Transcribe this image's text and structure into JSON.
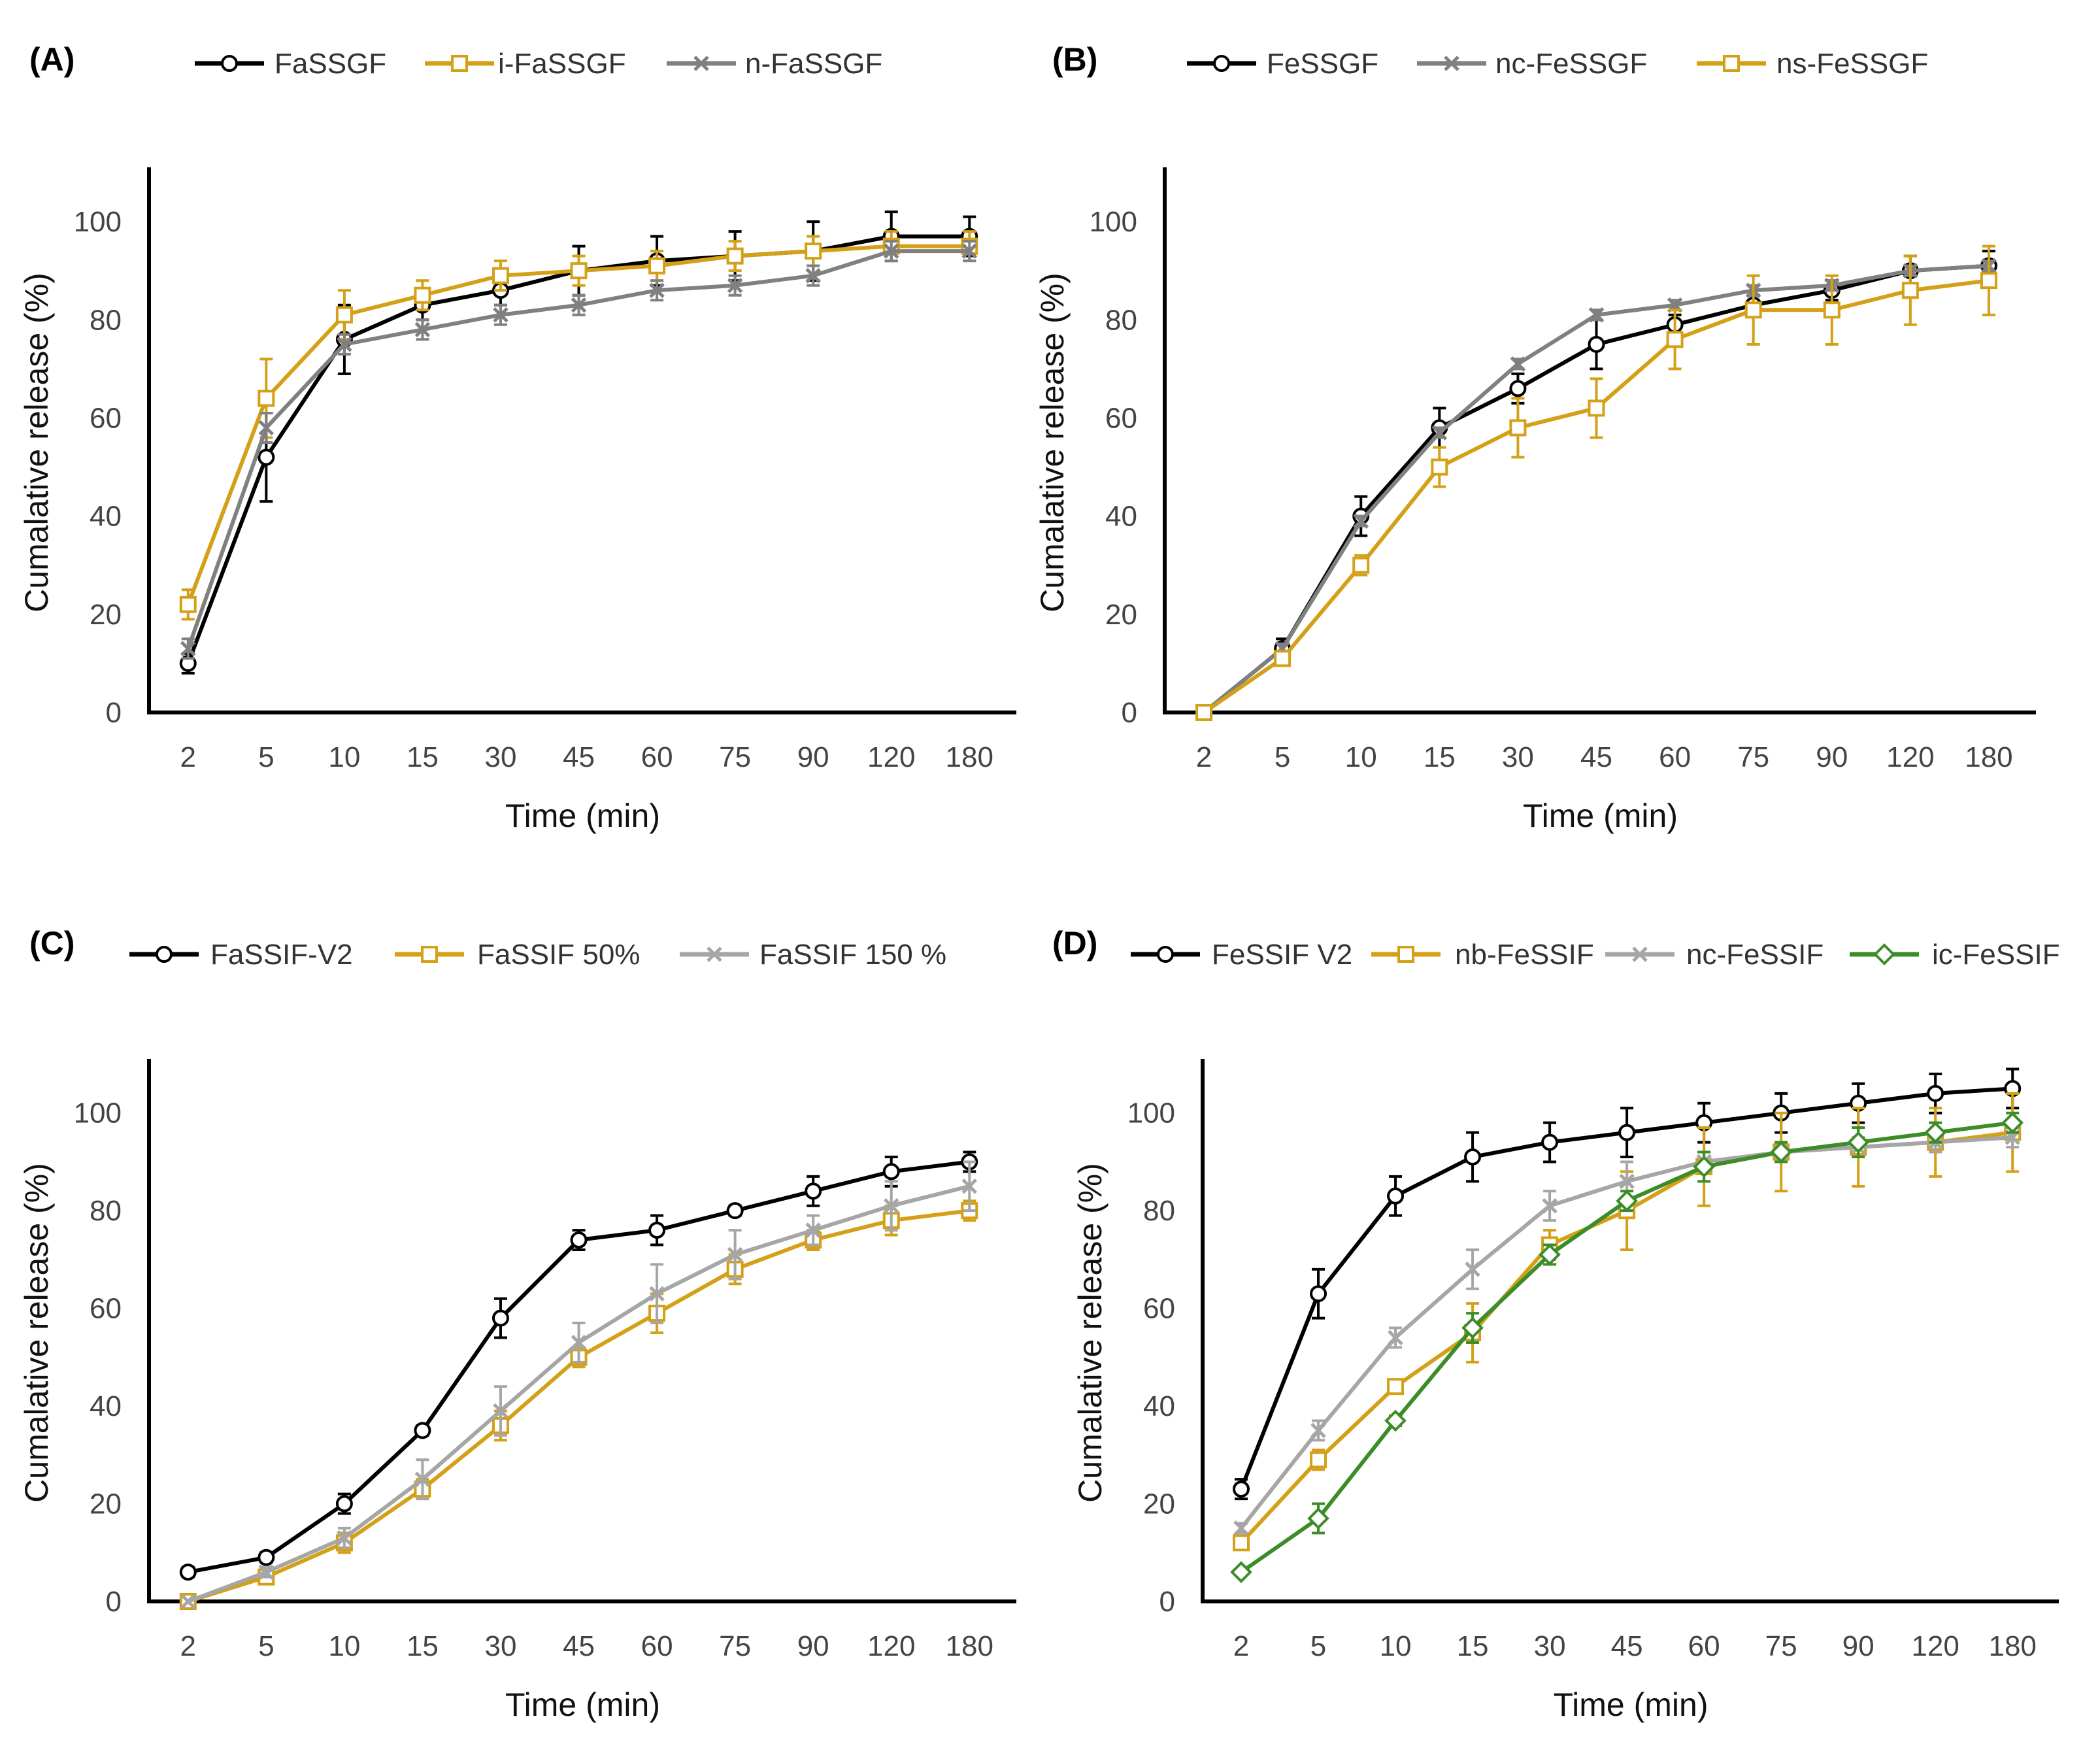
{
  "chart_data": [
    {
      "type": "line",
      "panel": "(A)",
      "title": "",
      "xlabel": "Time (min)",
      "ylabel": "Cumalative release (%)",
      "categories": [
        "2",
        "5",
        "10",
        "15",
        "30",
        "45",
        "60",
        "75",
        "90",
        "120",
        "180"
      ],
      "ylim": [
        0,
        110
      ],
      "yticks": [
        0,
        20,
        40,
        60,
        80,
        100
      ],
      "legend_position": "top",
      "series": [
        {
          "name": "FaSSGF",
          "color": "#000000",
          "marker": "circle",
          "values": [
            10,
            52,
            76,
            83,
            86,
            90,
            92,
            93,
            94,
            97,
            97
          ],
          "errors": [
            2,
            9,
            7,
            3,
            3,
            5,
            5,
            5,
            6,
            5,
            4
          ]
        },
        {
          "name": "i-FaSSGF",
          "color": "#D4A017",
          "marker": "square",
          "values": [
            22,
            64,
            81,
            85,
            89,
            90,
            91,
            93,
            94,
            95,
            95
          ],
          "errors": [
            3,
            8,
            5,
            3,
            3,
            3,
            3,
            3,
            3,
            3,
            3
          ]
        },
        {
          "name": "n-FaSSGF",
          "color": "#808080",
          "marker": "x",
          "values": [
            13,
            58,
            75,
            78,
            81,
            83,
            86,
            87,
            89,
            94,
            94
          ],
          "errors": [
            2,
            3,
            2,
            2,
            2,
            2,
            2,
            2,
            2,
            2,
            2
          ]
        }
      ]
    },
    {
      "type": "line",
      "panel": "(B)",
      "title": "",
      "xlabel": "Time (min)",
      "ylabel": "Cumalative release (%)",
      "categories": [
        "2",
        "5",
        "10",
        "15",
        "30",
        "45",
        "60",
        "75",
        "90",
        "120",
        "180"
      ],
      "ylim": [
        0,
        110
      ],
      "yticks": [
        0,
        20,
        40,
        60,
        80,
        100
      ],
      "legend_position": "top",
      "series": [
        {
          "name": "FeSSGF",
          "color": "#000000",
          "marker": "circle",
          "values": [
            0,
            13,
            40,
            58,
            66,
            75,
            79,
            83,
            86,
            90,
            91
          ],
          "errors": [
            0,
            2,
            4,
            4,
            3,
            5,
            2,
            2,
            2,
            3,
            3
          ]
        },
        {
          "name": "nc-FeSSGF",
          "color": "#808080",
          "marker": "x",
          "values": [
            0,
            13,
            39,
            57,
            71,
            81,
            83,
            86,
            87,
            90,
            91
          ],
          "errors": [
            0,
            1,
            1,
            1,
            1,
            1,
            1,
            1,
            1,
            1,
            1
          ]
        },
        {
          "name": "ns-FeSSGF",
          "color": "#D4A017",
          "marker": "square",
          "values": [
            0,
            11,
            30,
            50,
            58,
            62,
            76,
            82,
            82,
            86,
            88
          ],
          "errors": [
            0,
            1,
            2,
            4,
            6,
            6,
            6,
            7,
            7,
            7,
            7
          ]
        }
      ]
    },
    {
      "type": "line",
      "panel": "(C)",
      "title": "",
      "xlabel": "Time (min)",
      "ylabel": "Cumalative release (%)",
      "categories": [
        "2",
        "5",
        "10",
        "15",
        "30",
        "45",
        "60",
        "75",
        "90",
        "120",
        "180"
      ],
      "ylim": [
        0,
        110
      ],
      "yticks": [
        0,
        20,
        40,
        60,
        80,
        100
      ],
      "legend_position": "top",
      "series": [
        {
          "name": "FaSSIF-V2",
          "color": "#000000",
          "marker": "circle",
          "values": [
            6,
            9,
            20,
            35,
            58,
            74,
            76,
            80,
            84,
            88,
            90
          ],
          "errors": [
            1,
            1,
            2,
            1,
            4,
            2,
            3,
            1,
            3,
            3,
            2
          ]
        },
        {
          "name": "FaSSIF 50%",
          "color": "#D4A017",
          "marker": "square",
          "values": [
            0,
            5,
            12,
            23,
            36,
            50,
            59,
            68,
            74,
            78,
            80
          ],
          "errors": [
            0,
            1,
            2,
            2,
            3,
            2,
            4,
            3,
            2,
            3,
            2
          ]
        },
        {
          "name": "FaSSIF 150 %",
          "color": "#A6A6A6",
          "marker": "x",
          "values": [
            0,
            6,
            13,
            25,
            39,
            53,
            63,
            71,
            76,
            81,
            85
          ],
          "errors": [
            0,
            1,
            2,
            4,
            5,
            4,
            6,
            5,
            3,
            5,
            5
          ]
        }
      ]
    },
    {
      "type": "line",
      "panel": "(D)",
      "title": "",
      "xlabel": "Time (min)",
      "ylabel": "Cumalative release (%)",
      "categories": [
        "2",
        "5",
        "10",
        "15",
        "30",
        "45",
        "60",
        "75",
        "90",
        "120",
        "180"
      ],
      "ylim": [
        0,
        110
      ],
      "yticks": [
        0,
        20,
        40,
        60,
        80,
        100
      ],
      "legend_position": "top",
      "series": [
        {
          "name": "FeSSIF V2",
          "color": "#000000",
          "marker": "circle",
          "values": [
            23,
            63,
            83,
            91,
            94,
            96,
            98,
            100,
            102,
            104,
            105
          ],
          "errors": [
            2,
            5,
            4,
            5,
            4,
            5,
            4,
            4,
            4,
            4,
            4
          ]
        },
        {
          "name": "nb-FeSSIF",
          "color": "#D4A017",
          "marker": "square",
          "values": [
            12,
            29,
            44,
            55,
            73,
            80,
            89,
            92,
            93,
            94,
            96
          ],
          "errors": [
            1,
            2,
            1,
            6,
            3,
            8,
            8,
            8,
            8,
            7,
            8
          ]
        },
        {
          "name": "nc-FeSSIF",
          "color": "#A6A6A6",
          "marker": "x",
          "values": [
            15,
            35,
            54,
            68,
            81,
            86,
            90,
            92,
            93,
            94,
            95
          ],
          "errors": [
            1,
            2,
            2,
            4,
            3,
            4,
            2,
            2,
            2,
            2,
            2
          ]
        },
        {
          "name": "ic-FeSSIF",
          "color": "#3C8C28",
          "marker": "diamond",
          "values": [
            6,
            17,
            37,
            56,
            71,
            82,
            89,
            92,
            94,
            96,
            98
          ],
          "errors": [
            0,
            3,
            1,
            3,
            2,
            2,
            3,
            2,
            3,
            2,
            2
          ]
        }
      ]
    }
  ]
}
